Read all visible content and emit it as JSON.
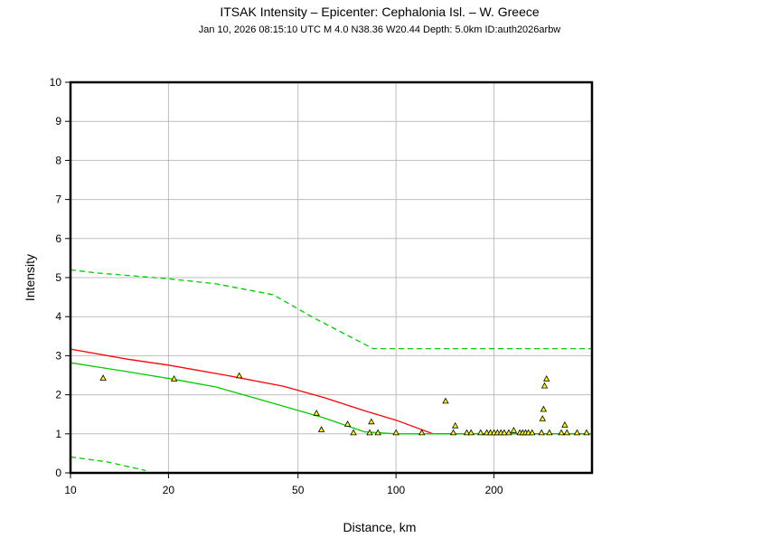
{
  "chart_data": {
    "type": "scatter",
    "title": "ITSAK Intensity –  Epicenter: Cephalonia Isl. – W. Greece",
    "subtitle": "Jan 10, 2026 08:15:10 UTC   M 4.0   N38.36 W20.44   Depth: 5.0km   ID:auth2026arbw",
    "xlabel": "Distance, km",
    "ylabel": "Intensity",
    "x_scale": "log",
    "xlim": [
      10,
      400
    ],
    "ylim": [
      0,
      10
    ],
    "x_ticks": [
      10,
      20,
      50,
      100,
      200
    ],
    "x_tick_labels": [
      "10",
      "20",
      "50",
      "100",
      "200"
    ],
    "y_ticks": [
      0,
      1,
      2,
      3,
      4,
      5,
      6,
      7,
      8,
      9,
      10
    ],
    "y_tick_labels": [
      "0",
      "1",
      "2",
      "3",
      "4",
      "5",
      "6",
      "7",
      "8",
      "9",
      "10"
    ],
    "grid": true,
    "colors": {
      "red_curve": "#ff0000",
      "green_curve": "#00cc00",
      "marker_fill": "#ffff00",
      "marker_stroke": "#000000",
      "grid": "#bdbdbd",
      "frame": "#000000"
    },
    "lines": [
      {
        "style": "solid",
        "color": "#ff0000",
        "x": [
          10,
          15,
          20,
          30,
          45,
          60,
          80,
          100,
          130,
          150,
          200,
          300,
          400
        ],
        "y": [
          3.17,
          2.91,
          2.76,
          2.5,
          2.22,
          1.93,
          1.59,
          1.35,
          1.0,
          1.0,
          1.0,
          1.0,
          1.0
        ]
      },
      {
        "style": "solid",
        "color": "#00cc00",
        "x": [
          10,
          15,
          21,
          28,
          40,
          60,
          80,
          100,
          150,
          200,
          300,
          400
        ],
        "y": [
          2.82,
          2.59,
          2.39,
          2.2,
          1.83,
          1.41,
          1.05,
          1.0,
          1.0,
          1.0,
          1.0,
          1.0
        ]
      },
      {
        "style": "dashed",
        "color": "#00cc00",
        "x": [
          10,
          12,
          20,
          28,
          42,
          55,
          85,
          100,
          200,
          400
        ],
        "y": [
          5.2,
          5.12,
          4.97,
          4.84,
          4.56,
          4.0,
          3.18,
          3.18,
          3.18,
          3.18
        ]
      },
      {
        "style": "dashed",
        "color": "#00cc00",
        "x": [
          10,
          13,
          17
        ],
        "y": [
          0.41,
          0.28,
          0.06
        ]
      }
    ],
    "points": {
      "x": [
        12.6,
        20.8,
        33,
        57,
        59,
        71,
        74,
        83,
        84,
        88,
        100,
        120,
        142,
        150,
        152,
        165,
        170,
        182,
        190,
        195,
        200,
        205,
        210,
        215,
        222,
        230,
        240,
        245,
        250,
        255,
        262,
        280,
        282,
        284,
        286,
        290,
        296,
        322,
        330,
        335,
        360,
        385
      ],
      "y": [
        2.42,
        2.4,
        2.48,
        1.52,
        1.1,
        1.24,
        1.02,
        1.02,
        1.3,
        1.02,
        1.02,
        1.02,
        1.83,
        1.02,
        1.2,
        1.02,
        1.02,
        1.02,
        1.02,
        1.02,
        1.02,
        1.02,
        1.02,
        1.02,
        1.02,
        1.08,
        1.02,
        1.02,
        1.02,
        1.02,
        1.02,
        1.02,
        1.38,
        1.62,
        2.22,
        2.4,
        1.02,
        1.02,
        1.22,
        1.02,
        1.02,
        1.02
      ]
    }
  }
}
